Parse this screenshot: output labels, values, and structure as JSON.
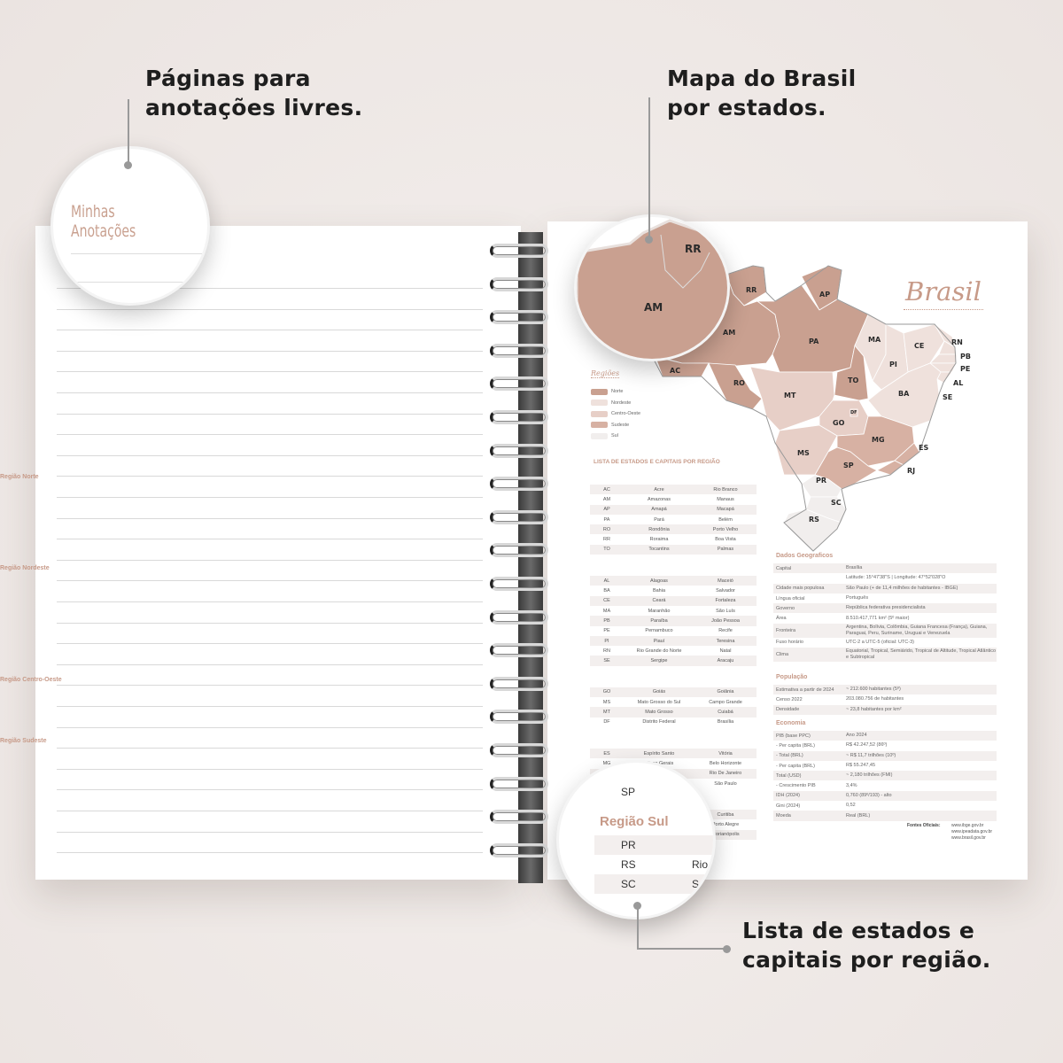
{
  "callouts": {
    "notes": [
      "Páginas para",
      "anotações livres."
    ],
    "map": [
      "Mapa do Brasil",
      "por estados."
    ],
    "list": [
      "Lista de estados e",
      "capitais por região."
    ]
  },
  "notes_circle": {
    "title": "Minhas Anotações"
  },
  "map_title": "Brasil",
  "colors": {
    "Norte": "#c9a090",
    "Nordeste": "#efe1dc",
    "Centro-Oeste": "#e7cfc7",
    "Sudeste": "#d7b1a3",
    "Sul": "#f1eeed",
    "accent": "#c79a88"
  },
  "legend": {
    "title": "Regiões",
    "items": [
      "Norte",
      "Nordeste",
      "Centro-Oeste",
      "Sudeste",
      "Sul"
    ]
  },
  "map_states": [
    {
      "uf": "RR",
      "region": "Norte"
    },
    {
      "uf": "AP",
      "region": "Norte"
    },
    {
      "uf": "AM",
      "region": "Norte"
    },
    {
      "uf": "PA",
      "region": "Norte"
    },
    {
      "uf": "AC",
      "region": "Norte"
    },
    {
      "uf": "RO",
      "region": "Norte"
    },
    {
      "uf": "TO",
      "region": "Norte"
    },
    {
      "uf": "MA",
      "region": "Nordeste"
    },
    {
      "uf": "PI",
      "region": "Nordeste"
    },
    {
      "uf": "CE",
      "region": "Nordeste"
    },
    {
      "uf": "RN",
      "region": "Nordeste"
    },
    {
      "uf": "PB",
      "region": "Nordeste"
    },
    {
      "uf": "PE",
      "region": "Nordeste"
    },
    {
      "uf": "AL",
      "region": "Nordeste"
    },
    {
      "uf": "SE",
      "region": "Nordeste"
    },
    {
      "uf": "BA",
      "region": "Nordeste"
    },
    {
      "uf": "MT",
      "region": "Centro-Oeste"
    },
    {
      "uf": "GO",
      "region": "Centro-Oeste"
    },
    {
      "uf": "DF",
      "region": "Centro-Oeste"
    },
    {
      "uf": "MS",
      "region": "Centro-Oeste"
    },
    {
      "uf": "MG",
      "region": "Sudeste"
    },
    {
      "uf": "ES",
      "region": "Sudeste"
    },
    {
      "uf": "RJ",
      "region": "Sudeste"
    },
    {
      "uf": "SP",
      "region": "Sudeste"
    },
    {
      "uf": "PR",
      "region": "Sul"
    },
    {
      "uf": "SC",
      "region": "Sul"
    },
    {
      "uf": "RS",
      "region": "Sul"
    }
  ],
  "map_zoom": {
    "labels": [
      "RR",
      "AM"
    ]
  },
  "list": {
    "title": "LISTA DE ESTADOS E CAPITAIS POR REGIÃO",
    "regions": [
      {
        "name": "Região Norte",
        "rows": [
          [
            "AC",
            "Acre",
            "Rio Branco"
          ],
          [
            "AM",
            "Amazonas",
            "Manaus"
          ],
          [
            "AP",
            "Amapá",
            "Macapá"
          ],
          [
            "PA",
            "Pará",
            "Belém"
          ],
          [
            "RO",
            "Rondônia",
            "Porto Velho"
          ],
          [
            "RR",
            "Roraima",
            "Boa Vista"
          ],
          [
            "TO",
            "Tocantins",
            "Palmas"
          ]
        ]
      },
      {
        "name": "Região Nordeste",
        "rows": [
          [
            "AL",
            "Alagoas",
            "Maceió"
          ],
          [
            "BA",
            "Bahia",
            "Salvador"
          ],
          [
            "CE",
            "Ceará",
            "Fortaleza"
          ],
          [
            "MA",
            "Maranhão",
            "São Luís"
          ],
          [
            "PB",
            "Paraíba",
            "João Pessoa"
          ],
          [
            "PE",
            "Pernambuco",
            "Recife"
          ],
          [
            "PI",
            "Piauí",
            "Teresina"
          ],
          [
            "RN",
            "Rio Grande do Norte",
            "Natal"
          ],
          [
            "SE",
            "Sergipe",
            "Aracaju"
          ]
        ]
      },
      {
        "name": "Região Centro-Oeste",
        "rows": [
          [
            "GO",
            "Goiás",
            "Goiânia"
          ],
          [
            "MS",
            "Mato Grosso do Sul",
            "Campo Grande"
          ],
          [
            "MT",
            "Mato Grosso",
            "Cuiabá"
          ],
          [
            "DF",
            "Distrito Federal",
            "Brasília"
          ]
        ]
      },
      {
        "name": "Região Sudeste",
        "rows": [
          [
            "ES",
            "Espírito Santo",
            "Vitória"
          ],
          [
            "MG",
            "Minas Gerais",
            "Belo Horizonte"
          ],
          [
            "RJ",
            "Rio de Janeiro",
            "Rio De Janeiro"
          ],
          [
            "SP",
            "São Paulo",
            "São Paulo"
          ]
        ]
      },
      {
        "name": "",
        "rows": [
          [
            "",
            "",
            "Curitiba"
          ],
          [
            "",
            "",
            "Porto Alegre"
          ],
          [
            "",
            "",
            "Florianópolis"
          ]
        ]
      }
    ]
  },
  "list_zoom": {
    "top": "SP",
    "title": "Região Sul",
    "rows": [
      [
        "PR",
        ""
      ],
      [
        "RS",
        "Rio"
      ],
      [
        "SC",
        "S"
      ]
    ]
  },
  "geo": {
    "title": "Dados Geograficos",
    "rows": [
      [
        "Capital",
        "Brasília"
      ],
      [
        "",
        "Latitude: 15°47'38\"S | Longitude: 47°52'028\"O"
      ],
      [
        "Cidade mais populosa",
        "São Paulo (+ de 11,4 milhões de habitantes - IBGE)"
      ],
      [
        "Língua oficial",
        "Português"
      ],
      [
        "Governo",
        "República federativa presidencialista"
      ],
      [
        "Área",
        "8.510.417,771 km² (5º maior)"
      ],
      [
        "Fronteira",
        "Argentina, Bolívia, Colômbia, Guiana Francesa (França), Guiana, Paraguai, Peru, Suriname, Uruguai e Venezuela"
      ],
      [
        "Fuso horário",
        "UTC-2 a UTC-5 (oficial: UTC-3)"
      ],
      [
        "Clima",
        "Equatorial, Tropical, Semiárido, Tropical de Altitude, Tropical Atlântico e Subtropical"
      ]
    ]
  },
  "pop": {
    "title": "População",
    "rows": [
      [
        "Estimativa a partir de 2024",
        "~ 212.600 habitantes (5º)"
      ],
      [
        "Censo 2022",
        "203.080.756 de habitantes"
      ],
      [
        "Densidade",
        "~ 23,8 habitantes por km²"
      ]
    ]
  },
  "eco": {
    "title": "Economia",
    "rows": [
      [
        "PIB (base PPC)",
        "Ano 2024"
      ],
      [
        "- Per capita (BRL)",
        "R$ 42.247,52 (86º)"
      ],
      [
        "- Total (BRL)",
        "~ R$ 11,7 trilhões (10º)"
      ],
      [
        "- Per capita (BRL)",
        "R$ 55.247,45"
      ],
      [
        "Total (USD)",
        "~ 2,180 trilhões (FMI)"
      ],
      [
        "- Crescimento PIB",
        "3,4%"
      ],
      [
        "IDH (2024)",
        "0,760 (89º/193) - alto"
      ],
      [
        "Gini (2024)",
        "0,52"
      ],
      [
        "Moeda",
        "Real (BRL)"
      ]
    ]
  },
  "sources": {
    "label": "Fontes Oficiais:",
    "links": [
      "www.ibge.gov.br",
      "www.ipeadata.gov.br",
      "www.brasil.gov.br"
    ]
  }
}
